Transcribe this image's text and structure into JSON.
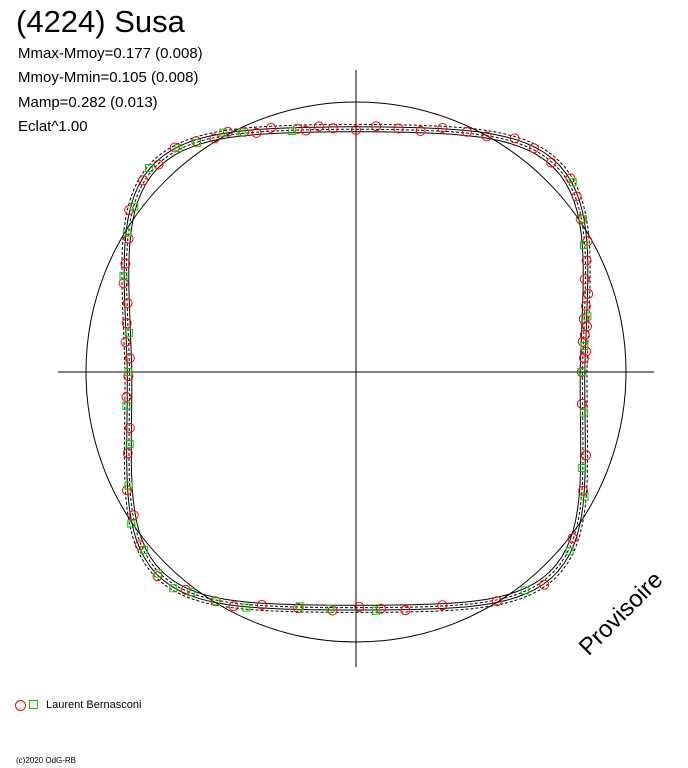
{
  "title": "(4224) Susa",
  "stats": [
    "Mmax-Mmoy=0.177 (0.008)",
    "Mmoy-Mmin=0.105 (0.008)",
    "Mamp=0.282 (0.013)",
    "Eclat^1.00"
  ],
  "watermark": "Provisoire",
  "legend": {
    "label": "Laurent Bernasconi",
    "circle_color": "#ff0000",
    "square_color": "#00cc00"
  },
  "copyright": "(c)2020 OdG-RB",
  "chart_data": {
    "type": "polar-lightcurve",
    "grid": false,
    "axes": "crosshair",
    "reference_circle": true,
    "series": [
      {
        "name": "Laurent Bernasconi",
        "marker": "circle",
        "color": "#ff0000",
        "points": [
          [
            2,
            0.0
          ],
          [
            2,
            3.5
          ],
          [
            2,
            5.1
          ],
          [
            2,
            7.6
          ],
          [
            2,
            9.2
          ],
          [
            2,
            11.2
          ],
          [
            2,
            13.1
          ],
          [
            2,
            16.0
          ],
          [
            2,
            18.6
          ],
          [
            2,
            22.1
          ],
          [
            2,
            25.8
          ],
          [
            2,
            29.5
          ],
          [
            2,
            34.2
          ],
          [
            2,
            38.5
          ],
          [
            2,
            42.1
          ],
          [
            2,
            47.0
          ],
          [
            2,
            51.5
          ],
          [
            2,
            55.8
          ],
          [
            2,
            61.0
          ],
          [
            2,
            65.2
          ],
          [
            2,
            70.5
          ],
          [
            2,
            75.0
          ],
          [
            2,
            80.1
          ],
          [
            2,
            85.3
          ],
          [
            2,
            90.0
          ],
          [
            2,
            95.4
          ],
          [
            2,
            98.6
          ],
          [
            2,
            101.7
          ],
          [
            2,
            103.5
          ],
          [
            2,
            109.2
          ],
          [
            2,
            112.6
          ],
          [
            2,
            115.0
          ],
          [
            2,
            118.1
          ],
          [
            2,
            121.2
          ],
          [
            2,
            124.7
          ],
          [
            2,
            128.9
          ],
          [
            2,
            133.6
          ],
          [
            2,
            138.0
          ],
          [
            2,
            144.5
          ],
          [
            2,
            149.6
          ],
          [
            2,
            154.8
          ],
          [
            2,
            159.1
          ],
          [
            2,
            163.2
          ],
          [
            2,
            168.0
          ],
          [
            2,
            172.6
          ],
          [
            2,
            176.5
          ],
          [
            2,
            181.0
          ],
          [
            2,
            186.2
          ],
          [
            2,
            193.9
          ],
          [
            2,
            199.6
          ],
          [
            2,
            207.3
          ],
          [
            2,
            212.8
          ],
          [
            2,
            218.7
          ],
          [
            2,
            225.8
          ],
          [
            2,
            232.0
          ],
          [
            2,
            238.5
          ],
          [
            2,
            242.4
          ],
          [
            2,
            248.0
          ],
          [
            2,
            256.2
          ],
          [
            2,
            264.4
          ],
          [
            2,
            270.8
          ],
          [
            2,
            276.0
          ],
          [
            2,
            281.7
          ],
          [
            2,
            290.3
          ],
          [
            2,
            301.6
          ],
          [
            2,
            311.5
          ],
          [
            2,
            322.5
          ],
          [
            2,
            332.4
          ],
          [
            2,
            340.1
          ],
          [
            2,
            352.0
          ]
        ]
      },
      {
        "name": "Laurent Bernasconi",
        "marker": "square",
        "color": "#00cc00",
        "points": [
          [
            2,
            0.0
          ],
          [
            2,
            6.5
          ],
          [
            2,
            13.5
          ],
          [
            2,
            29.1
          ],
          [
            2,
            34.0
          ],
          [
            2,
            41.2
          ],
          [
            2,
            104.9
          ],
          [
            2,
            115.5
          ],
          [
            2,
            119.0
          ],
          [
            2,
            124.8
          ],
          [
            2,
            128.4
          ],
          [
            2,
            135.4
          ],
          [
            2,
            143.3
          ],
          [
            2,
            148.7
          ],
          [
            2,
            157.6
          ],
          [
            2,
            170.2
          ],
          [
            2,
            180.0
          ],
          [
            2,
            188.4
          ],
          [
            2,
            197.7
          ],
          [
            2,
            206.5
          ],
          [
            2,
            214.0
          ],
          [
            2,
            220.0
          ],
          [
            2,
            225.5
          ],
          [
            2,
            229.8
          ],
          [
            2,
            233.2
          ],
          [
            2,
            238.6
          ],
          [
            2,
            245.0
          ],
          [
            2,
            256.5
          ],
          [
            2,
            263.8
          ],
          [
            2,
            274.8
          ],
          [
            2,
            307.7
          ],
          [
            2,
            320.0
          ],
          [
            2,
            331.4
          ],
          [
            2,
            337.0
          ],
          [
            2,
            349.9
          ]
        ]
      }
    ]
  }
}
